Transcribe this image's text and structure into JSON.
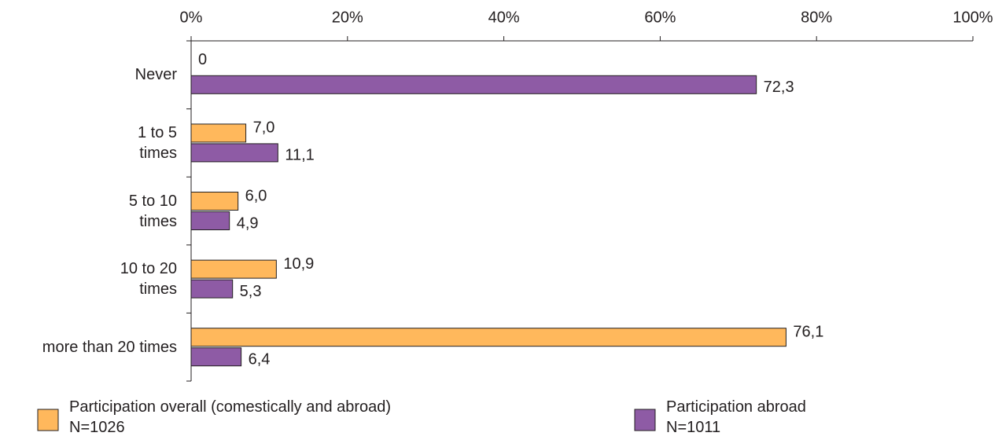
{
  "chart_data": {
    "type": "hbar",
    "categories": [
      "Never",
      "1 to 5\ntimes",
      "5 to 10\ntimes",
      "10 to 20\ntimes",
      "more than 20 times"
    ],
    "series": [
      {
        "name": "Participation overall (comestically and abroad)\nN=1026",
        "color": "#ffb85c",
        "values": [
          0,
          7.0,
          6.0,
          10.9,
          76.1
        ],
        "value_labels": [
          "0",
          "7,0",
          "6,0",
          "10,9",
          "76,1"
        ]
      },
      {
        "name": "Participation abroad\nN=1011",
        "color": "#8e5ba5",
        "values": [
          72.3,
          11.1,
          4.9,
          5.3,
          6.4
        ],
        "value_labels": [
          "72,3",
          "11,1",
          "4,9",
          "5,3",
          "6,4"
        ]
      }
    ],
    "xlim": [
      0,
      100
    ],
    "xticks": [
      {
        "value": 0,
        "label": "0%"
      },
      {
        "value": 20,
        "label": "20%"
      },
      {
        "value": 40,
        "label": "40%"
      },
      {
        "value": 60,
        "label": "60%"
      },
      {
        "value": 80,
        "label": "80%"
      },
      {
        "value": 100,
        "label": "100%"
      }
    ]
  }
}
